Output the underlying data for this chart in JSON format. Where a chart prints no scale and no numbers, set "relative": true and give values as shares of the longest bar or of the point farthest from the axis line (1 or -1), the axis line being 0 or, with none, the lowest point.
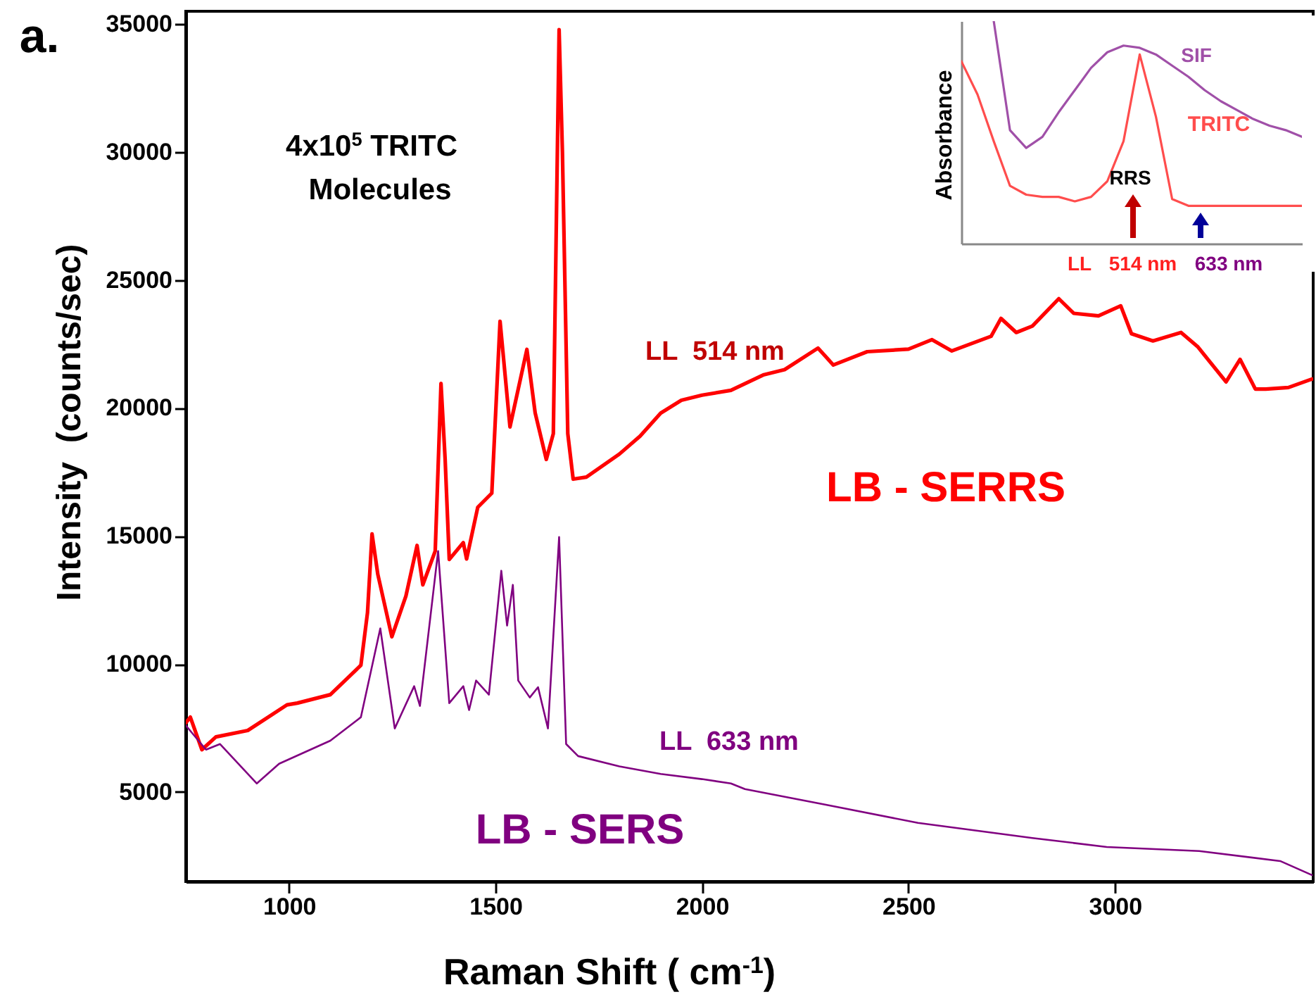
{
  "chart_data": [
    {
      "type": "line",
      "xlabel": "Raman Shift ( cm$^{-1}$)",
      "ylabel": "Intensity  (counts/sec)",
      "xlim": [
        750,
        3480
      ],
      "ylim": [
        1500,
        35500
      ],
      "xticks": [
        1000,
        1500,
        2000,
        2500,
        3000
      ],
      "yticks": [
        5000,
        10000,
        15000,
        20000,
        25000,
        30000,
        35000
      ],
      "grid": false,
      "annotations": [
        "a.",
        "4x10$^{5}$ TRITC",
        "Molecules",
        "LL  514 nm",
        "LL  633 nm"
      ],
      "series": [
        {
          "name": "LB - SERRS",
          "color": "#ff0000",
          "x": [
            750,
            761,
            789,
            823,
            900,
            995,
            1020,
            1100,
            1174,
            1190,
            1201,
            1215,
            1249,
            1283,
            1310,
            1324,
            1354,
            1368,
            1378,
            1388,
            1422,
            1430,
            1457,
            1491,
            1511,
            1535,
            1576,
            1596,
            1623,
            1640,
            1654,
            1662,
            1675,
            1688,
            1720,
            1800,
            1850,
            1900,
            1950,
            2000,
            2070,
            2150,
            2200,
            2281,
            2318,
            2400,
            2500,
            2557,
            2605,
            2700,
            2724,
            2761,
            2800,
            2864,
            2900,
            2960,
            3014,
            3040,
            3092,
            3160,
            3200,
            3269,
            3303,
            3340,
            3365,
            3420,
            3477
          ],
          "values": [
            7700,
            7920,
            6650,
            7150,
            7400,
            8400,
            8470,
            8800,
            9950,
            12000,
            15080,
            13500,
            11060,
            12650,
            14630,
            13090,
            14410,
            20960,
            18000,
            14080,
            14740,
            14100,
            16120,
            16670,
            23390,
            19260,
            22290,
            19810,
            17990,
            19000,
            34780,
            30000,
            19000,
            17220,
            17300,
            18200,
            18900,
            19800,
            20300,
            20500,
            20690,
            21300,
            21500,
            22340,
            21680,
            22200,
            22300,
            22670,
            22230,
            22800,
            23500,
            22950,
            23200,
            24270,
            23700,
            23600,
            23990,
            22900,
            22620,
            22950,
            22400,
            21020,
            21900,
            20740,
            20740,
            20800,
            21130
          ]
        },
        {
          "name": "LB - SERS",
          "color": "#800080",
          "x": [
            750,
            768,
            799,
            833,
            922,
            976,
            1100,
            1174,
            1221,
            1256,
            1303,
            1317,
            1361,
            1388,
            1422,
            1436,
            1453,
            1484,
            1514,
            1528,
            1542,
            1555,
            1583,
            1603,
            1627,
            1654,
            1671,
            1700,
            1800,
            1900,
            2000,
            2070,
            2104,
            2300,
            2523,
            2800,
            2980,
            3204,
            3400,
            3477
          ],
          "values": [
            7600,
            7250,
            6650,
            6870,
            5330,
            6100,
            7000,
            7920,
            11390,
            7480,
            9130,
            8360,
            14410,
            8470,
            9130,
            8200,
            9350,
            8800,
            13640,
            11500,
            13090,
            9350,
            8690,
            9090,
            7480,
            14960,
            6870,
            6400,
            6000,
            5700,
            5500,
            5330,
            5110,
            4500,
            3790,
            3200,
            2850,
            2690,
            2300,
            1750
          ]
        }
      ]
    },
    {
      "type": "line",
      "ylabel": "Absorbance",
      "relative": true,
      "categories": [
        null,
        null,
        null,
        null,
        null,
        null,
        null,
        null,
        null,
        null,
        null,
        null,
        null,
        null,
        null,
        null,
        null,
        null,
        null,
        null,
        null,
        null
      ],
      "annotations": [
        "RRS",
        "LL",
        "514 nm",
        "633 nm"
      ],
      "series": [
        {
          "name": "TRITC",
          "color": "#ff4d4d",
          "values": [
            0.82,
            0.67,
            0.46,
            0.26,
            0.22,
            0.21,
            0.21,
            0.19,
            0.21,
            0.28,
            0.46,
            0.85,
            0.57,
            0.2,
            0.17,
            0.17,
            0.17,
            0.17,
            0.17,
            0.17,
            0.17,
            0.17
          ]
        },
        {
          "name": "SIF",
          "color": "#a050a8",
          "values": [
            null,
            null,
            1,
            0.51,
            0.43,
            0.48,
            0.59,
            0.69,
            0.79,
            0.86,
            0.89,
            0.88,
            0.85,
            0.8,
            0.75,
            0.69,
            0.64,
            0.6,
            0.56,
            0.53,
            0.51,
            0.48
          ]
        }
      ]
    }
  ]
}
